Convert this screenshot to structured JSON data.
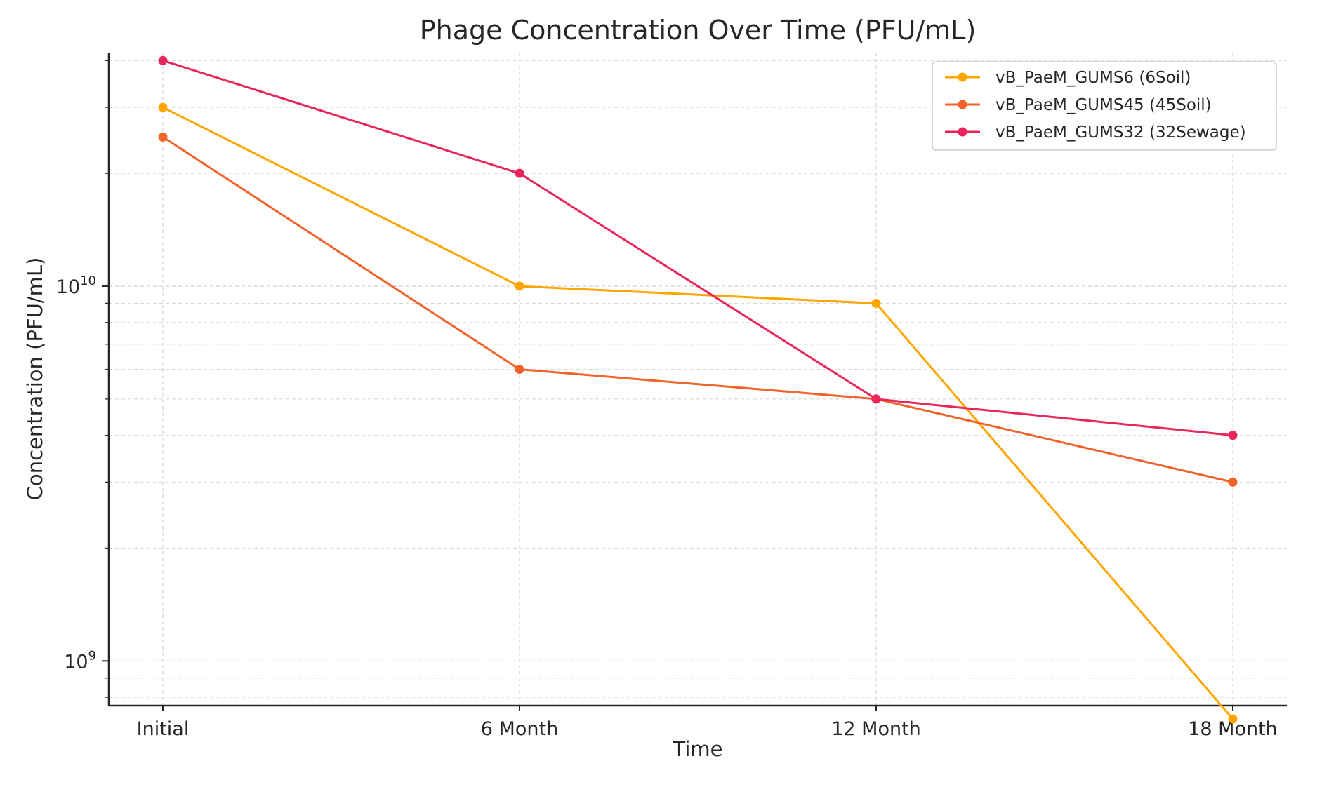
{
  "chart_data": {
    "type": "line",
    "title": "Phage Concentration Over Time (PFU/mL)",
    "xlabel": "Time",
    "ylabel": "Concentration (PFU/mL)",
    "yscale": "log",
    "ylim": [
      760000000,
      42000000000
    ],
    "categories": [
      "Initial",
      "6 Month",
      "12 Month",
      "18 Month"
    ],
    "y_ticks": [
      {
        "value": 1000000000,
        "base": "10",
        "exp": "9"
      },
      {
        "value": 10000000000,
        "base": "10",
        "exp": "10"
      }
    ],
    "grid": true,
    "legend_position": "top-right",
    "series": [
      {
        "name": "vB_PaeM_GUMS6 (6Soil)",
        "color": "#FFA500",
        "values": [
          30000000000,
          10000000000,
          9000000000,
          700000000
        ]
      },
      {
        "name": "vB_PaeM_GUMS45 (45Soil)",
        "color": "#F2622B",
        "values": [
          25000000000,
          6000000000,
          5000000000,
          3000000000
        ]
      },
      {
        "name": "vB_PaeM_GUMS32 (32Sewage)",
        "color": "#E8265C",
        "values": [
          40000000000,
          20000000000,
          5000000000,
          4000000000
        ]
      }
    ]
  }
}
